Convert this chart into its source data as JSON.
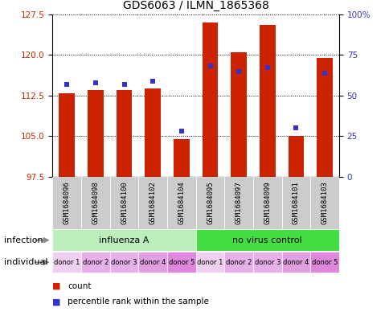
{
  "title": "GDS6063 / ILMN_1865368",
  "samples": [
    "GSM1684096",
    "GSM1684098",
    "GSM1684100",
    "GSM1684102",
    "GSM1684104",
    "GSM1684095",
    "GSM1684097",
    "GSM1684099",
    "GSM1684101",
    "GSM1684103"
  ],
  "bar_heights": [
    113.0,
    113.5,
    113.5,
    113.8,
    104.5,
    126.0,
    120.5,
    125.5,
    105.0,
    119.5
  ],
  "percentile_values": [
    57,
    58,
    57,
    59,
    28,
    68,
    65,
    67,
    30,
    64
  ],
  "ylim_left": [
    97.5,
    127.5
  ],
  "ylim_right": [
    0,
    100
  ],
  "yticks_left": [
    97.5,
    105,
    112.5,
    120,
    127.5
  ],
  "yticks_right": [
    0,
    25,
    50,
    75,
    100
  ],
  "bar_color": "#cc2200",
  "dot_color": "#3333cc",
  "bar_width": 0.55,
  "infection_groups": [
    {
      "label": "influenza A",
      "start": 0,
      "end": 5,
      "color": "#bbeebb"
    },
    {
      "label": "no virus control",
      "start": 5,
      "end": 10,
      "color": "#44dd44"
    }
  ],
  "individual_colors": [
    "#f0d0f0",
    "#e8b0e8",
    "#e8b0e8",
    "#e0a0e0",
    "#dd88dd",
    "#f0d0f0",
    "#e8b0e8",
    "#e8b0e8",
    "#e0a0e0",
    "#dd88dd"
  ],
  "individual_labels": [
    "donor 1",
    "donor 2",
    "donor 3",
    "donor 4",
    "donor 5",
    "donor 1",
    "donor 2",
    "donor 3",
    "donor 4",
    "donor 5"
  ],
  "infection_row_label": "infection",
  "individual_row_label": "individual",
  "legend_count_label": "count",
  "legend_percentile_label": "percentile rank within the sample",
  "bg_plot": "#ffffff",
  "bg_sample_cells": "#cccccc",
  "grid_color": "#000000",
  "title_fontsize": 10,
  "tick_fontsize": 7.5,
  "label_fontsize": 8,
  "sample_label_fontsize": 6.5,
  "row_label_fontsize": 8,
  "legend_fontsize": 7.5
}
